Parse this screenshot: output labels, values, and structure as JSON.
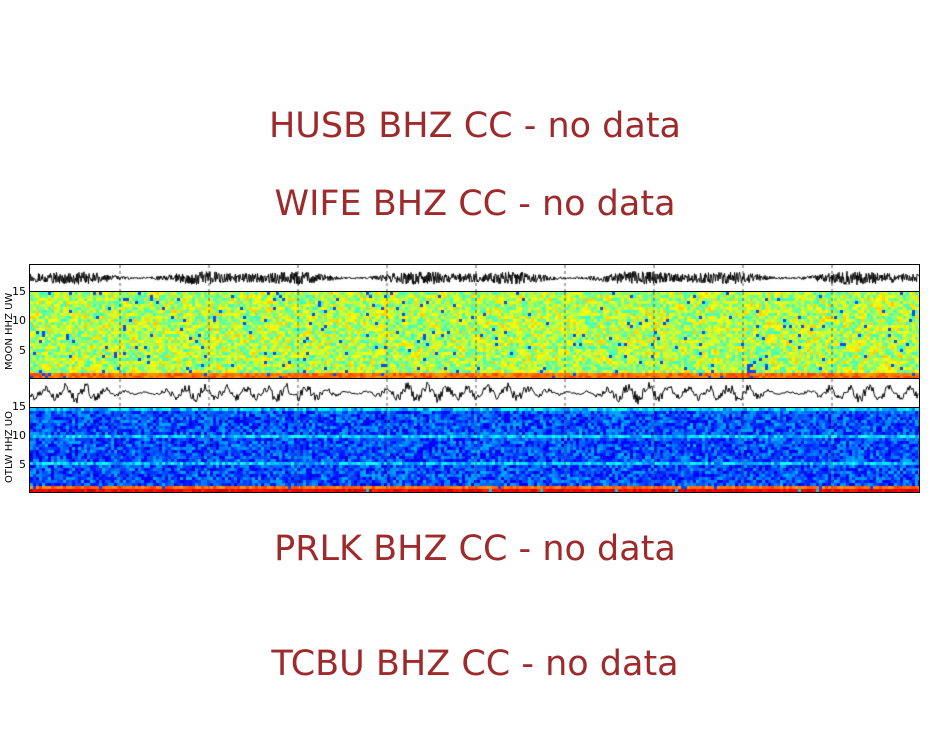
{
  "no_data_messages": [
    "HUSB BHZ CC - no data",
    "WIFE BHZ CC - no data",
    "PRLK BHZ CC - no data",
    "TCBU BHZ CC - no data"
  ],
  "chart_data": {
    "type": "heatmap",
    "description_kind": "seismogram traces with spectrograms",
    "panels": [
      {
        "label": "MOON HHZ UW",
        "yticks": [
          "5",
          "10",
          "15"
        ],
        "ylim": [
          0,
          15
        ],
        "colormap": "jet",
        "dominant_level": "medium-high (green/yellow)"
      },
      {
        "label": "OTLW HHZ UO",
        "yticks": [
          "5",
          "10",
          "15"
        ],
        "ylim": [
          0,
          15
        ],
        "colormap": "jet",
        "dominant_level": "low (blue)"
      }
    ],
    "grid": "vertical dashed lines",
    "trace_color": "#000000",
    "message_color": "#9e2a2b"
  }
}
